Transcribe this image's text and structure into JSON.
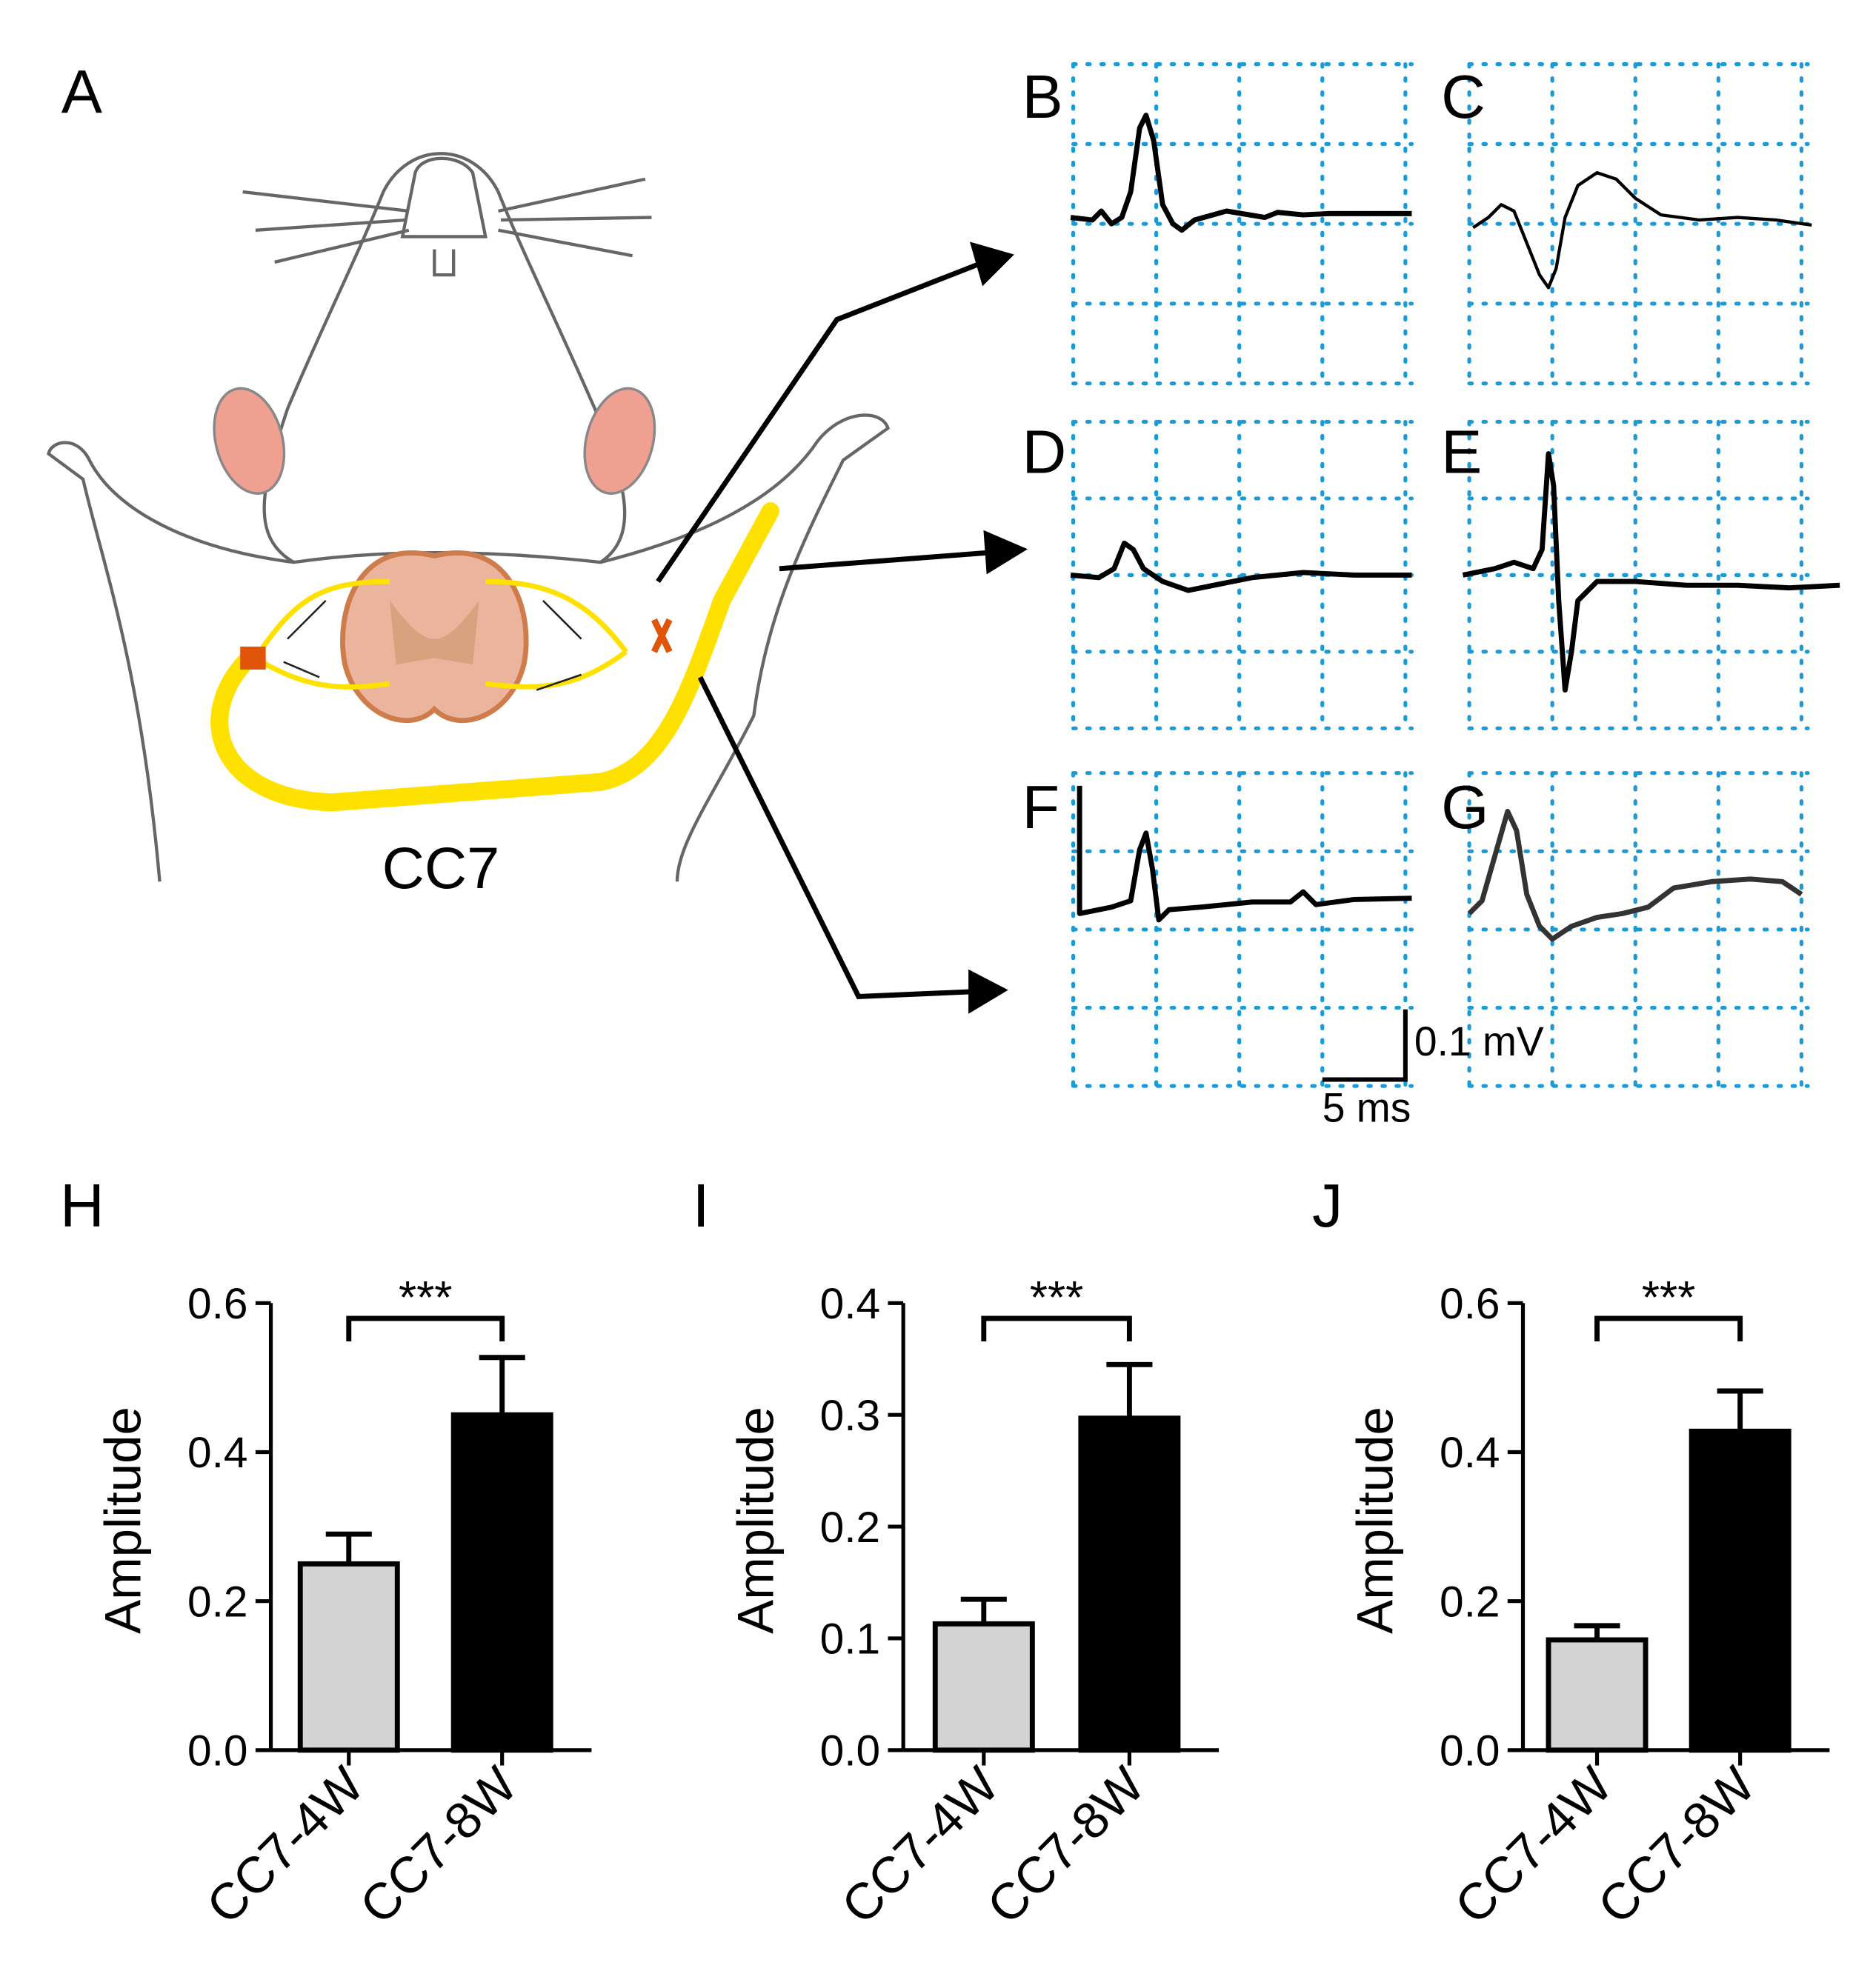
{
  "figure": {
    "panel_labels": [
      "A",
      "B",
      "C",
      "D",
      "E",
      "F",
      "G"
    ],
    "illustration_label": "CC7",
    "scale_bar": {
      "y_label": "0.1 mV",
      "x_label": "5 ms"
    }
  },
  "chart_data": [
    {
      "type": "bar",
      "title": "H",
      "y_label": "Amplitude",
      "categories": [
        "CC7-4W",
        "CC7-8W"
      ],
      "values": [
        0.25,
        0.45
      ],
      "errors": [
        0.04,
        0.077
      ],
      "colors": [
        "#d3d3d3",
        "#000000"
      ],
      "annotation": "***",
      "ylim": [
        0,
        0.6
      ],
      "yticks": [
        {
          "value": 0,
          "label": "0.0"
        },
        0.2,
        0.4,
        0.6
      ]
    },
    {
      "type": "bar",
      "title": "I",
      "y_label": "Amplitude",
      "categories": [
        "CC7-4W",
        "CC7-8W"
      ],
      "values": [
        0.113,
        0.297
      ],
      "errors": [
        0.022,
        0.048
      ],
      "colors": [
        "#d3d3d3",
        "#000000"
      ],
      "annotation": "***",
      "ylim": [
        0,
        0.4
      ],
      "yticks": [
        {
          "value": 0,
          "label": "0.0"
        },
        0.1,
        0.2,
        0.3,
        0.4
      ]
    },
    {
      "type": "bar",
      "title": "J",
      "y_label": "Amplitude",
      "categories": [
        "CC7-4W",
        "CC7-8W"
      ],
      "values": [
        0.148,
        0.428
      ],
      "errors": [
        0.019,
        0.054
      ],
      "colors": [
        "#d3d3d3",
        "#000000"
      ],
      "annotation": "***",
      "ylim": [
        0,
        0.6
      ],
      "yticks": [
        {
          "value": 0,
          "label": "0.0"
        },
        0.2,
        0.4,
        0.6
      ]
    }
  ]
}
